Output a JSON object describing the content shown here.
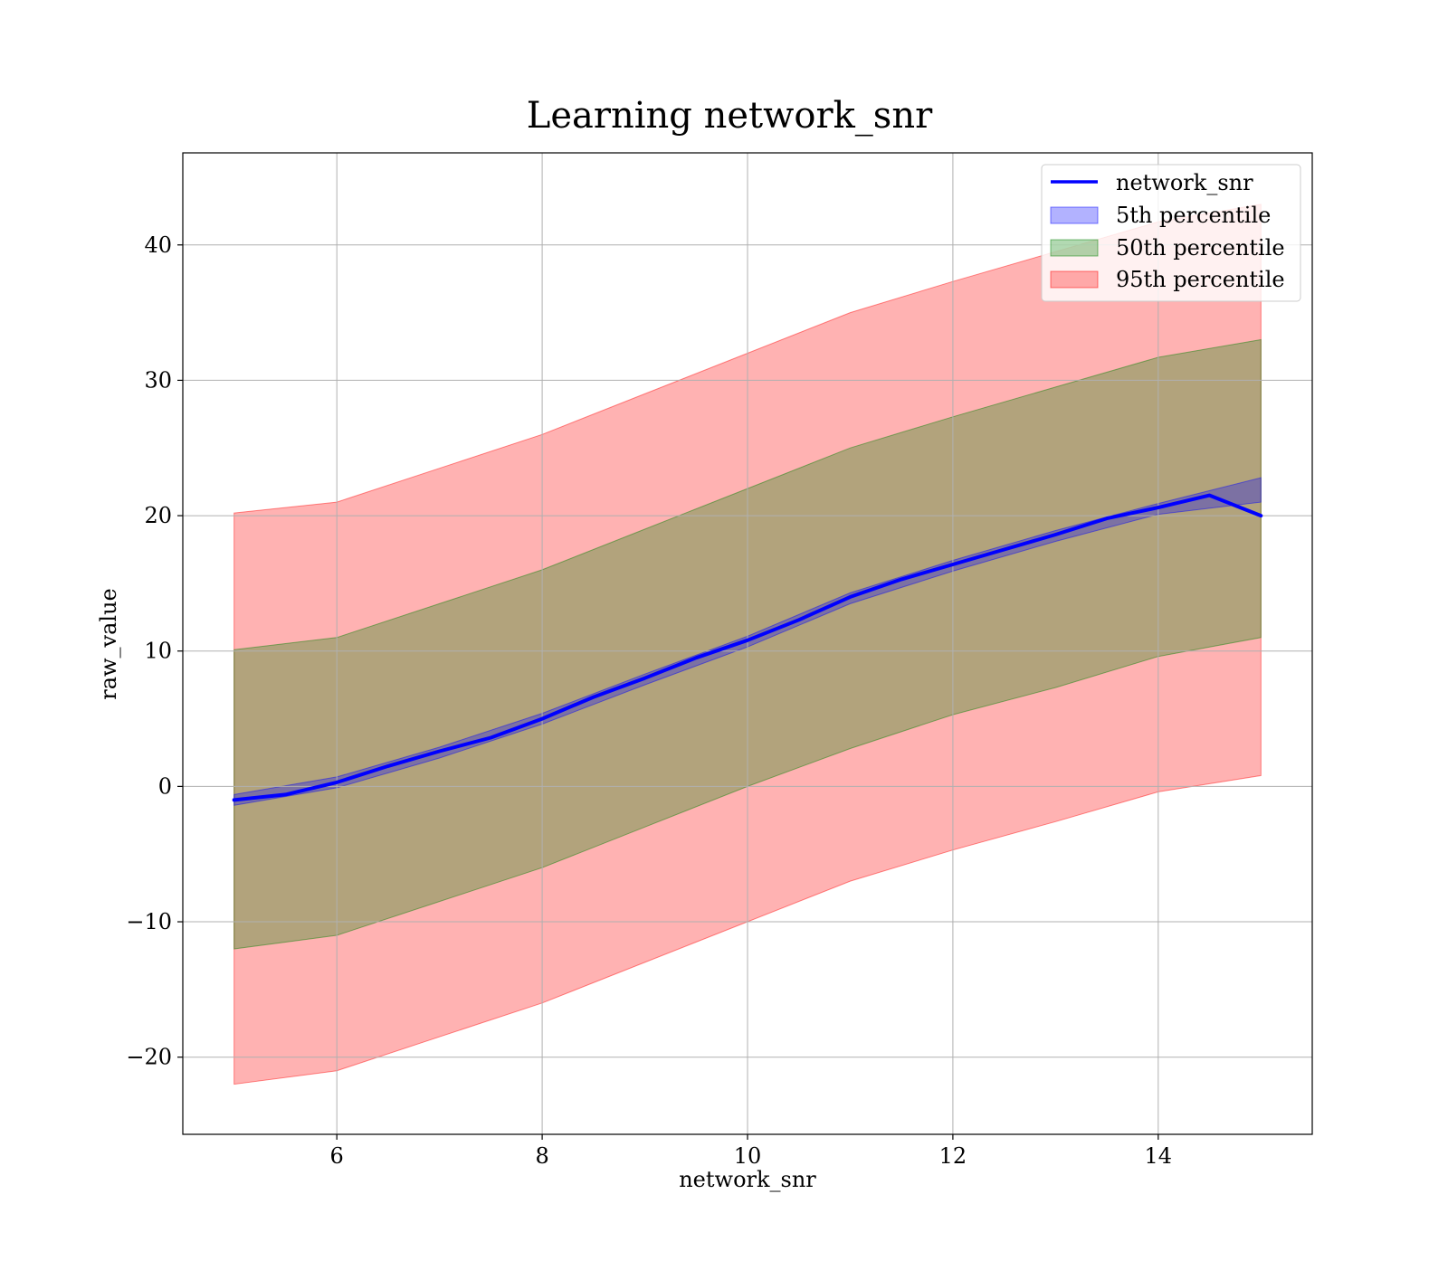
{
  "chart_data": {
    "type": "line",
    "title": "Learning network_snr",
    "xlabel": "network_snr",
    "ylabel": "raw_value",
    "xlim": [
      4.5,
      15.5
    ],
    "ylim": [
      -25.7,
      46.8
    ],
    "xticks": [
      6,
      8,
      10,
      12,
      14
    ],
    "yticks": [
      -20,
      -10,
      0,
      10,
      20,
      30,
      40
    ],
    "ytick_labels": [
      "−20",
      "−10",
      "0",
      "10",
      "20",
      "30",
      "40"
    ],
    "grid": true,
    "legend_position": "top-right",
    "line": {
      "name": "network_snr",
      "color": "#0000ff",
      "x": [
        5.0,
        5.5,
        6.0,
        6.5,
        7.0,
        7.5,
        8.0,
        8.5,
        9.0,
        9.5,
        10.0,
        10.5,
        11.0,
        11.5,
        12.0,
        12.5,
        13.0,
        13.5,
        14.0,
        14.5,
        15.0
      ],
      "y": [
        -1.0,
        -0.6,
        0.3,
        1.5,
        2.6,
        3.6,
        5.0,
        6.6,
        8.0,
        9.5,
        10.8,
        12.3,
        14.0,
        15.3,
        16.4,
        17.5,
        18.6,
        19.8,
        20.6,
        21.5,
        20.0
      ]
    },
    "bands": [
      {
        "name": "5th percentile",
        "color": "#0000ff",
        "x": [
          5.0,
          6.0,
          7.0,
          8.0,
          9.0,
          10.0,
          11.0,
          12.0,
          13.0,
          14.0,
          15.0
        ],
        "lower": [
          -1.4,
          -0.1,
          2.1,
          4.6,
          7.5,
          10.3,
          13.5,
          15.9,
          18.1,
          20.1,
          21.0
        ],
        "upper": [
          -0.6,
          0.7,
          2.9,
          5.4,
          8.3,
          11.1,
          14.3,
          16.7,
          18.9,
          20.9,
          22.8
        ]
      },
      {
        "name": "50th percentile",
        "color": "#008000",
        "x": [
          5.0,
          6.0,
          7.0,
          8.0,
          9.0,
          10.0,
          11.0,
          12.0,
          13.0,
          14.0,
          15.0
        ],
        "lower": [
          -12.0,
          -11.0,
          -8.5,
          -6.0,
          -3.0,
          0.0,
          2.8,
          5.3,
          7.3,
          9.6,
          11.0
        ],
        "upper": [
          10.1,
          11.0,
          13.5,
          16.0,
          19.0,
          22.0,
          25.0,
          27.3,
          29.5,
          31.7,
          33.0
        ]
      },
      {
        "name": "95th percentile",
        "color": "#ff0000",
        "x": [
          5.0,
          6.0,
          7.0,
          8.0,
          9.0,
          10.0,
          11.0,
          12.0,
          13.0,
          14.0,
          15.0
        ],
        "lower": [
          -22.0,
          -21.0,
          -18.5,
          -16.0,
          -13.0,
          -10.0,
          -7.0,
          -4.7,
          -2.6,
          -0.4,
          0.8
        ],
        "upper": [
          20.2,
          21.0,
          23.5,
          26.0,
          29.0,
          32.0,
          35.0,
          37.3,
          39.5,
          41.7,
          43.0
        ]
      }
    ]
  }
}
